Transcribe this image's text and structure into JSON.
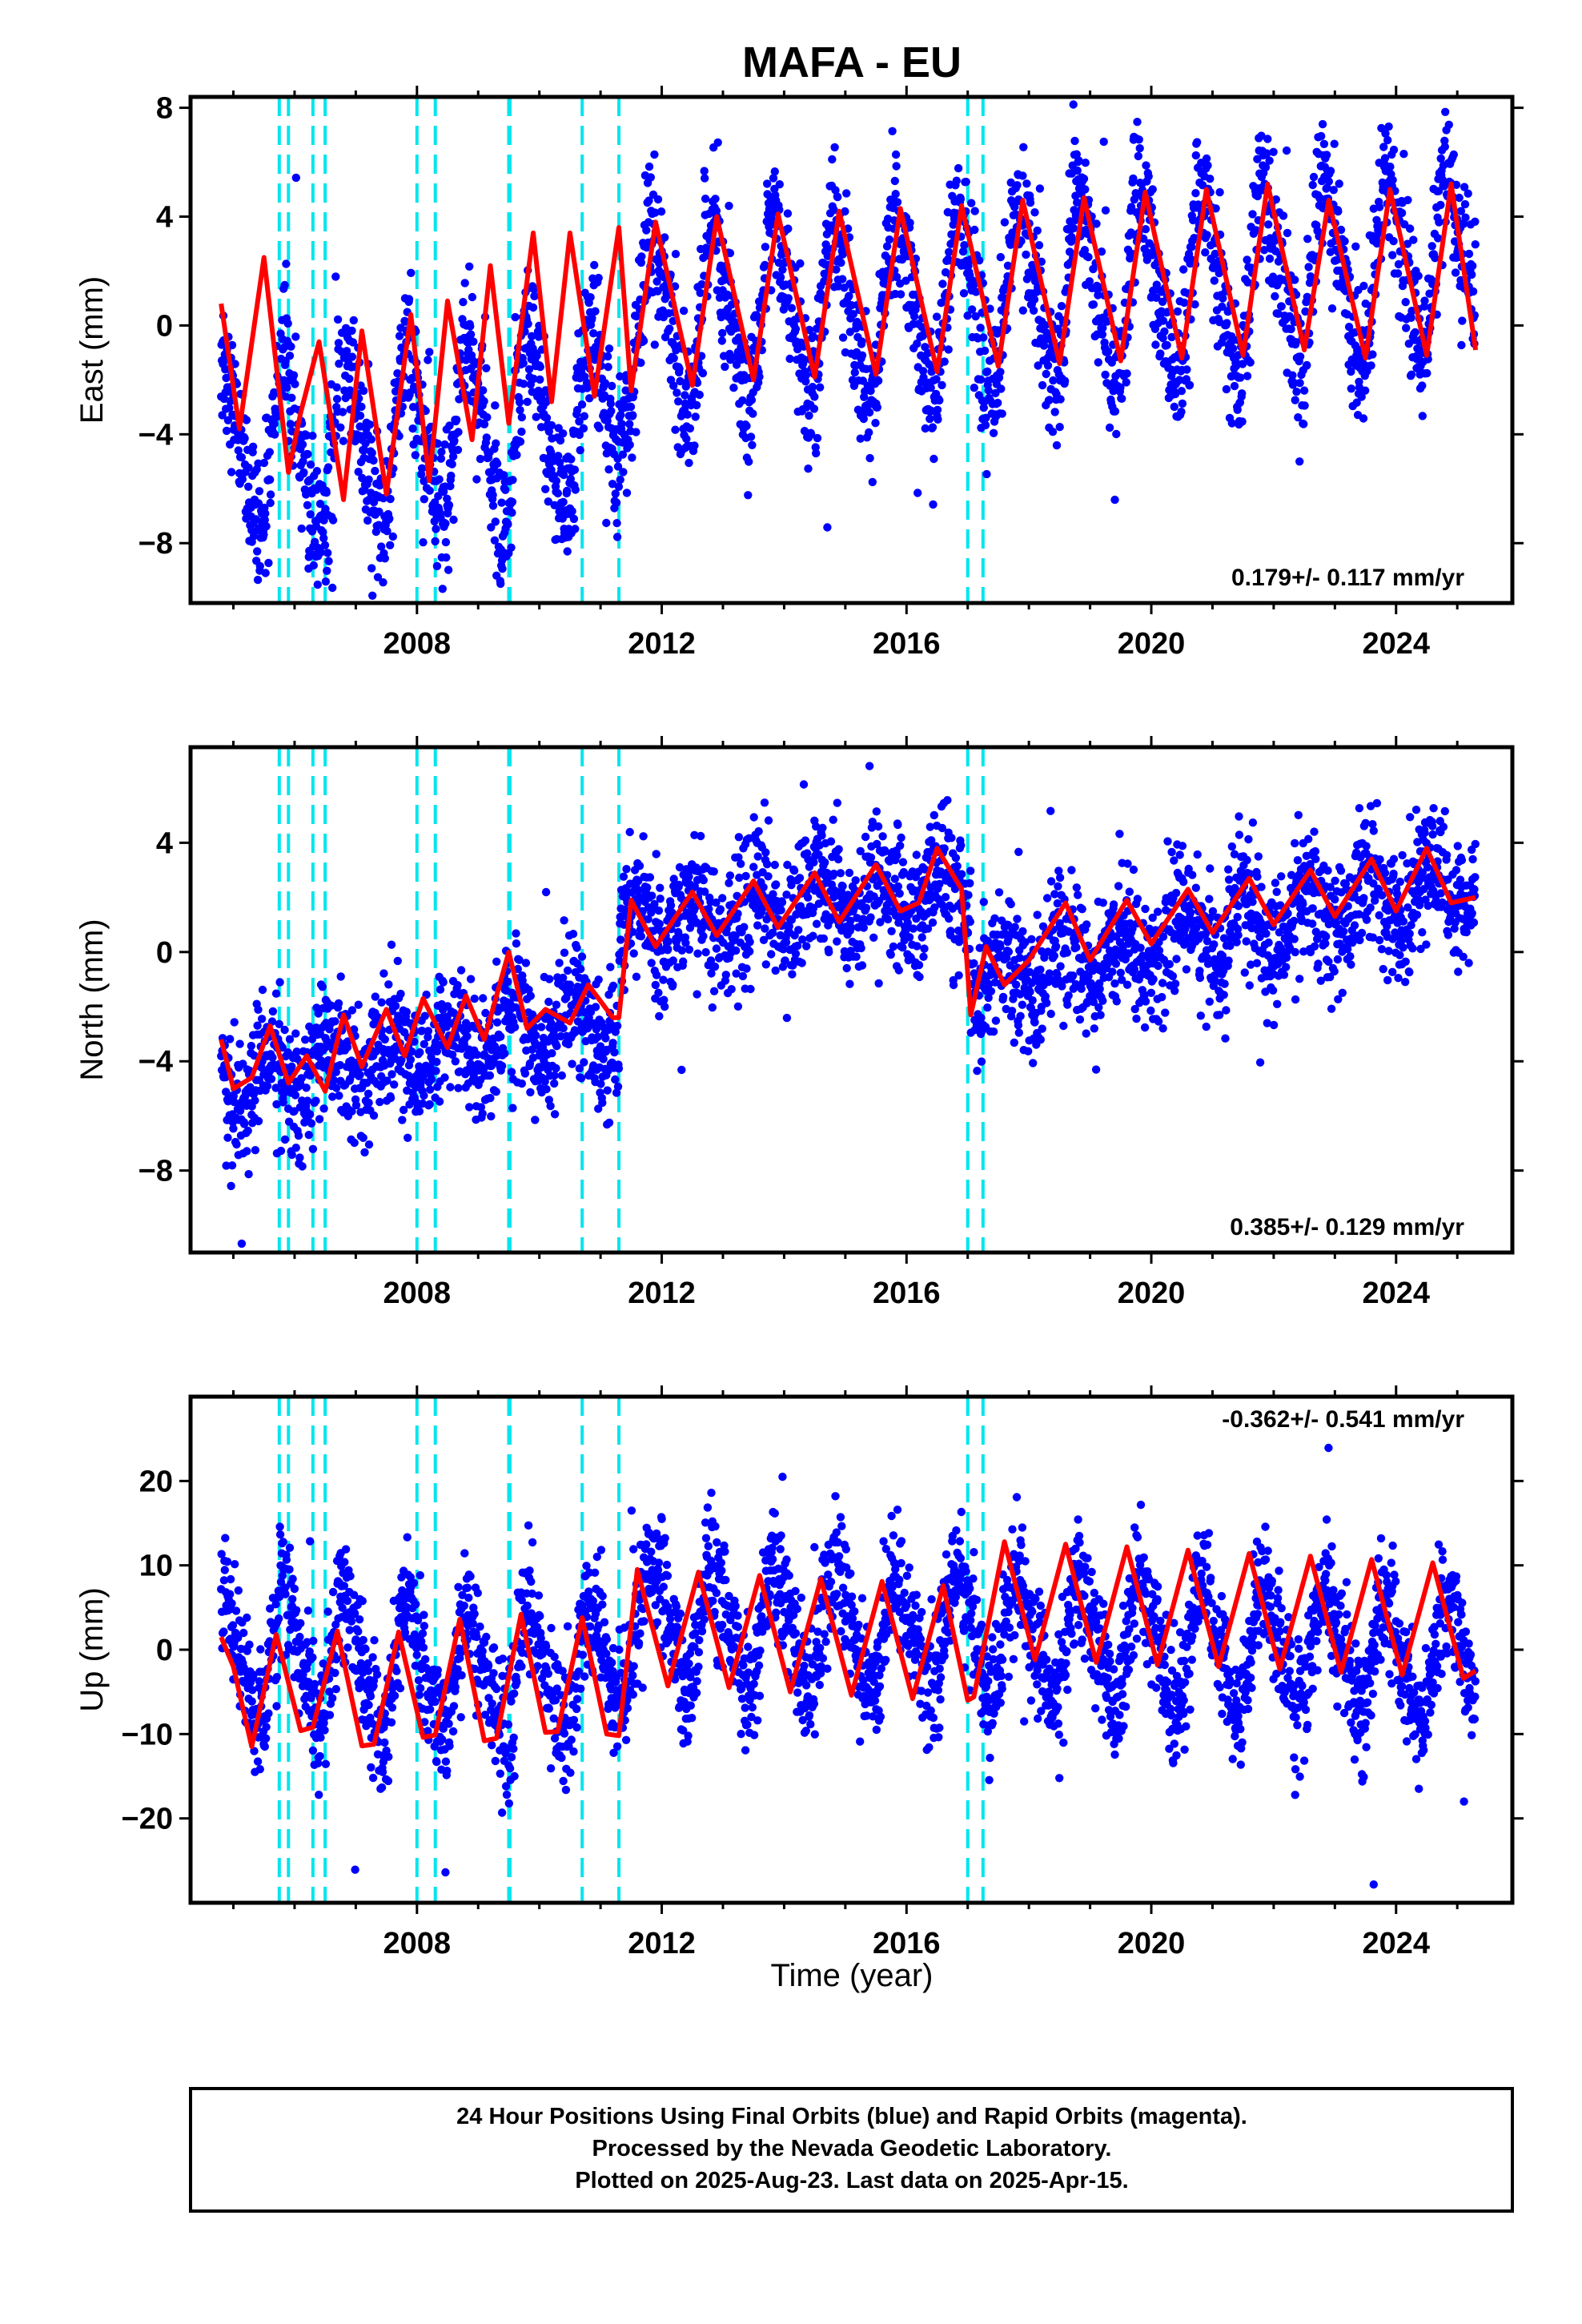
{
  "title": "MAFA - EU",
  "xlabel": "Time (year)",
  "colors": {
    "points": "#0000ff",
    "model": "#ff0000",
    "offsets": "#00e5ee",
    "frame": "#000000"
  },
  "caption": {
    "line1": "24 Hour Positions Using Final Orbits (blue) and Rapid Orbits (magenta).",
    "line2": "Processed by the Nevada Geodetic Laboratory.",
    "line3": "Plotted on 2025-Aug-23. Last data on 2025-Apr-15."
  },
  "chart_data": [
    {
      "type": "scatter",
      "name": "east",
      "ylabel": "East (mm)",
      "rate_label": "0.179+/- 0.117 mm/yr",
      "rate_position": "bottom-right",
      "xlim": [
        2004.3,
        2025.9
      ],
      "ylim": [
        -10.2,
        8.4
      ],
      "x_ticks": [
        2008,
        2012,
        2016,
        2020,
        2024
      ],
      "y_ticks": [
        -8,
        -4,
        0,
        4,
        8
      ],
      "offset_epochs": [
        2005.75,
        2005.9,
        2006.3,
        2006.5,
        2008.0,
        2008.3,
        2009.5,
        2009.52,
        2010.7,
        2011.3,
        2017.0,
        2017.25
      ],
      "data_span": [
        2004.8,
        2025.3
      ],
      "series": [
        {
          "name": "24 hour positions (final orbits)",
          "kind": "points",
          "model": {
            "mean_pre": -2.8,
            "mean_post": 0.6,
            "step_year": 2011.3,
            "trend_per_yr": 0.179,
            "annual_amp": 3.2,
            "annual_phase_yr": 0.62,
            "semiannual_amp": 0.6,
            "noise_sd": 1.3
          }
        },
        {
          "name": "model fit",
          "kind": "line",
          "x": [
            2004.8,
            2005.1,
            2005.5,
            2005.9,
            2006.1,
            2006.4,
            2006.8,
            2007.1,
            2007.5,
            2007.9,
            2008.2,
            2008.5,
            2008.9,
            2009.2,
            2009.5,
            2009.9,
            2010.2,
            2010.5,
            2010.9,
            2011.3,
            2011.5,
            2011.9,
            2012.5,
            2012.9,
            2013.5,
            2013.9,
            2014.5,
            2014.9,
            2015.5,
            2015.9,
            2016.5,
            2016.9,
            2017.5,
            2017.9,
            2018.5,
            2018.9,
            2019.5,
            2019.9,
            2020.5,
            2020.9,
            2021.5,
            2021.9,
            2022.5,
            2022.9,
            2023.5,
            2023.9,
            2024.5,
            2024.9,
            2025.3
          ],
          "y": [
            0.8,
            -3.8,
            2.5,
            -5.4,
            -3.2,
            -0.6,
            -6.4,
            -0.2,
            -6.2,
            0.4,
            -5.7,
            0.9,
            -4.2,
            2.2,
            -3.6,
            3.4,
            -2.8,
            3.4,
            -2.6,
            3.6,
            -2.4,
            3.8,
            -2.2,
            4.0,
            -2.0,
            4.1,
            -1.9,
            4.2,
            -1.8,
            4.3,
            -1.7,
            4.4,
            -1.5,
            4.6,
            -1.4,
            4.7,
            -1.3,
            4.9,
            -1.2,
            5.0,
            -1.1,
            5.2,
            -0.9,
            4.6,
            -1.2,
            5.0,
            -1.1,
            5.2,
            -0.9
          ]
        }
      ]
    },
    {
      "type": "scatter",
      "name": "north",
      "ylabel": "North (mm)",
      "rate_label": "0.385+/- 0.129 mm/yr",
      "rate_position": "bottom-right",
      "xlim": [
        2004.3,
        2025.9
      ],
      "ylim": [
        -11,
        7.5
      ],
      "x_ticks": [
        2008,
        2012,
        2016,
        2020,
        2024
      ],
      "y_ticks": [
        -8,
        -4,
        0,
        4
      ],
      "offset_epochs": [
        2005.75,
        2005.9,
        2006.3,
        2006.5,
        2008.0,
        2008.3,
        2009.5,
        2009.52,
        2010.7,
        2011.3,
        2017.0,
        2017.25
      ],
      "data_span": [
        2004.8,
        2025.3
      ],
      "series": [
        {
          "name": "24 hour positions (final orbits)",
          "kind": "points",
          "model": {
            "segments": [
              [
                2004.8,
                2011.3,
                -4.8,
                -2.5
              ],
              [
                2011.3,
                2017.05,
                1.0,
                2.4
              ],
              [
                2017.05,
                2025.3,
                -1.0,
                2.6
              ]
            ],
            "annual_amp": 0.9,
            "annual_phase_yr": 0.3,
            "noise_sd": 1.2
          }
        },
        {
          "name": "model fit",
          "kind": "line",
          "x": [
            2004.8,
            2005.0,
            2005.3,
            2005.6,
            2005.9,
            2006.2,
            2006.5,
            2006.8,
            2007.1,
            2007.5,
            2007.8,
            2008.1,
            2008.5,
            2008.8,
            2009.1,
            2009.5,
            2009.8,
            2010.1,
            2010.5,
            2010.8,
            2011.2,
            2011.3,
            2011.5,
            2011.9,
            2012.5,
            2012.9,
            2013.5,
            2013.9,
            2014.5,
            2014.9,
            2015.5,
            2015.9,
            2016.2,
            2016.5,
            2016.9,
            2017.05,
            2017.3,
            2017.6,
            2018.0,
            2018.6,
            2019.0,
            2019.6,
            2020.0,
            2020.6,
            2021.0,
            2021.6,
            2022.0,
            2022.6,
            2023.0,
            2023.6,
            2024.0,
            2024.5,
            2024.9,
            2025.3
          ],
          "y": [
            -3.2,
            -5.0,
            -4.6,
            -2.7,
            -4.8,
            -3.8,
            -5.1,
            -2.3,
            -4.2,
            -2.1,
            -3.8,
            -1.7,
            -3.5,
            -1.6,
            -3.2,
            0.0,
            -2.8,
            -2.1,
            -2.6,
            -1.2,
            -2.4,
            -2.4,
            1.9,
            0.2,
            2.2,
            0.6,
            2.6,
            0.9,
            2.9,
            1.1,
            3.2,
            1.5,
            1.8,
            3.8,
            2.3,
            -2.3,
            0.2,
            -1.2,
            -0.3,
            1.8,
            -0.3,
            1.9,
            0.3,
            2.3,
            0.7,
            2.7,
            1.0,
            3.0,
            1.3,
            3.4,
            1.5,
            3.8,
            1.8,
            2.0
          ]
        }
      ]
    },
    {
      "type": "scatter",
      "name": "up",
      "ylabel": "Up (mm)",
      "rate_label": "-0.362+/- 0.541 mm/yr",
      "rate_position": "top-right",
      "xlim": [
        2004.3,
        2025.9
      ],
      "ylim": [
        -30,
        30
      ],
      "x_ticks": [
        2008,
        2012,
        2016,
        2020,
        2024
      ],
      "y_ticks": [
        -20,
        -10,
        0,
        10,
        20
      ],
      "offset_epochs": [
        2005.75,
        2005.9,
        2006.3,
        2006.5,
        2008.0,
        2008.3,
        2009.5,
        2009.52,
        2010.7,
        2011.3,
        2017.0,
        2017.25
      ],
      "data_span": [
        2004.8,
        2025.3
      ],
      "series": [
        {
          "name": "24 hour positions (final orbits)",
          "kind": "points",
          "model": {
            "mean_pre": -4.5,
            "mean_post": 2.5,
            "step_year": 2011.3,
            "trend_per_yr": -0.362,
            "annual_amp": 7.0,
            "annual_phase_yr": 0.62,
            "semiannual_amp": 1.5,
            "noise_sd": 3.6
          }
        },
        {
          "name": "model fit",
          "kind": "line",
          "x": [
            2004.8,
            2005.0,
            2005.3,
            2005.7,
            2006.1,
            2006.3,
            2006.7,
            2007.1,
            2007.3,
            2007.7,
            2008.1,
            2008.3,
            2008.7,
            2009.1,
            2009.3,
            2009.7,
            2010.1,
            2010.3,
            2010.7,
            2011.1,
            2011.3,
            2011.6,
            2012.1,
            2012.6,
            2013.1,
            2013.6,
            2014.1,
            2014.6,
            2015.1,
            2015.6,
            2016.1,
            2016.6,
            2017.0,
            2017.1,
            2017.6,
            2018.1,
            2018.6,
            2019.1,
            2019.6,
            2020.1,
            2020.6,
            2021.1,
            2021.6,
            2022.1,
            2022.6,
            2023.1,
            2023.6,
            2024.1,
            2024.6,
            2025.1,
            2025.3
          ],
          "y": [
            1.5,
            -2.0,
            -11.5,
            1.8,
            -9.6,
            -9.2,
            2.2,
            -11.4,
            -11.2,
            2.1,
            -10.4,
            -10.1,
            3.6,
            -10.8,
            -10.5,
            4.2,
            -9.8,
            -9.7,
            3.8,
            -10.0,
            -10.2,
            9.5,
            -4.3,
            9.2,
            -4.5,
            8.8,
            -5.0,
            8.4,
            -5.4,
            8.1,
            -5.8,
            7.6,
            -6.0,
            -5.6,
            12.8,
            -1.2,
            12.5,
            -1.5,
            12.2,
            -1.8,
            11.8,
            -2.0,
            11.4,
            -2.3,
            11.1,
            -2.7,
            10.7,
            -3.0,
            10.3,
            -3.4,
            -2.5
          ]
        }
      ]
    }
  ]
}
